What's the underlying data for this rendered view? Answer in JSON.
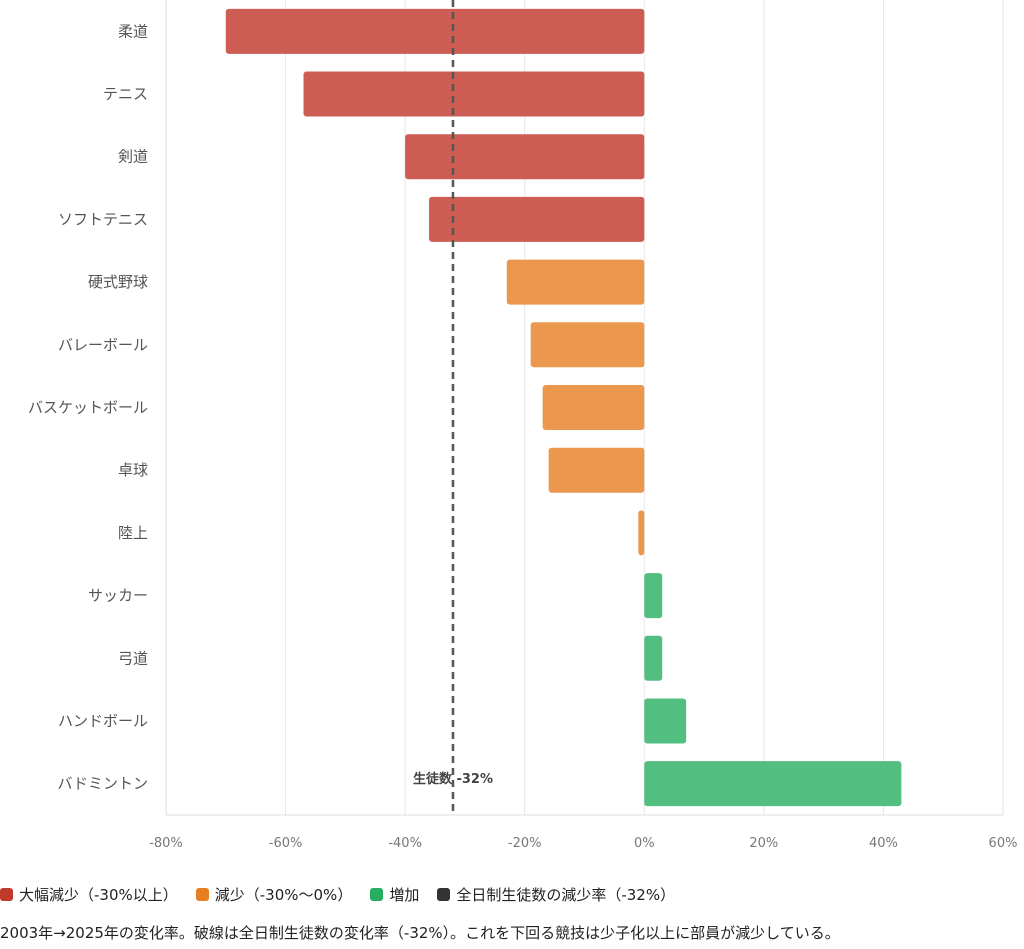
{
  "chart_data": {
    "type": "bar",
    "orientation": "horizontal",
    "categories": [
      "柔道",
      "テニス",
      "剣道",
      "ソフトテニス",
      "硬式野球",
      "バレーボール",
      "バスケットボール",
      "卓球",
      "陸上",
      "サッカー",
      "弓道",
      "ハンドボール",
      "バドミントン"
    ],
    "values": [
      -70,
      -57,
      -40,
      -36,
      -23,
      -19,
      -17,
      -16,
      -1,
      3,
      3,
      7,
      43
    ],
    "groups": [
      "big",
      "big",
      "big",
      "big",
      "dec",
      "dec",
      "dec",
      "dec",
      "dec",
      "inc",
      "inc",
      "inc",
      "inc"
    ],
    "xlim": [
      -80,
      60
    ],
    "xticks": [
      -80,
      -60,
      -40,
      -20,
      0,
      20,
      40,
      60
    ],
    "xtick_labels": [
      "-80%",
      "-60%",
      "-40%",
      "-20%",
      "0%",
      "20%",
      "40%",
      "60%"
    ],
    "reference_line": {
      "value": -32,
      "label": "生徒数 -32%"
    },
    "grid": true,
    "colors": {
      "big": "#cd5c52",
      "dec": "#eb984e",
      "inc": "#52be80",
      "ref": "#555555"
    },
    "legend": [
      {
        "label": "大幅減少（-30%以上）",
        "color": "#c0392b"
      },
      {
        "label": "減少（-30%〜0%）",
        "color": "#e67e22"
      },
      {
        "label": "増加",
        "color": "#27ae60"
      },
      {
        "label": "全日制生徒数の減少率（-32%）",
        "color": "#333333"
      }
    ],
    "legend_position": "bottom-left",
    "caption": "2003年→2025年の変化率。破線は全日制生徒数の変化率（-32%）。これを下回る競技は少子化以上に部員が減少している。"
  }
}
